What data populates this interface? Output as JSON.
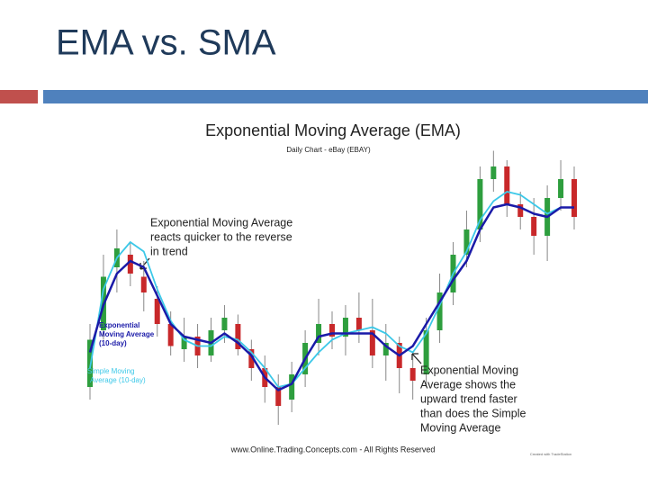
{
  "slide_title": "EMA vs. SMA",
  "chart_data": {
    "type": "candlestick",
    "title": "Exponential Moving Average (EMA)",
    "subtitle": "Daily Chart - eBay (EBAY)",
    "ylim": [
      0,
      100
    ],
    "candles": {
      "open": [
        20,
        38,
        58,
        62,
        55,
        48,
        40,
        32,
        36,
        30,
        38,
        40,
        32,
        26,
        20,
        16,
        24,
        34,
        40,
        36,
        42,
        38,
        30,
        34,
        26,
        24,
        38,
        50,
        62,
        70,
        86,
        90,
        78,
        74,
        68,
        80,
        86
      ],
      "close": [
        35,
        55,
        64,
        56,
        50,
        40,
        33,
        36,
        30,
        38,
        42,
        32,
        26,
        20,
        14,
        24,
        34,
        40,
        36,
        42,
        38,
        30,
        34,
        26,
        22,
        38,
        50,
        62,
        70,
        86,
        90,
        78,
        74,
        68,
        80,
        86,
        74
      ],
      "high": [
        40,
        62,
        70,
        66,
        60,
        52,
        44,
        42,
        40,
        42,
        46,
        43,
        35,
        30,
        24,
        28,
        38,
        48,
        44,
        46,
        50,
        48,
        40,
        36,
        30,
        42,
        56,
        66,
        76,
        90,
        95,
        92,
        82,
        80,
        84,
        92,
        90
      ],
      "low": [
        16,
        35,
        50,
        52,
        44,
        36,
        30,
        28,
        26,
        28,
        34,
        30,
        22,
        15,
        8,
        12,
        20,
        30,
        32,
        30,
        34,
        26,
        22,
        18,
        16,
        20,
        34,
        46,
        58,
        66,
        82,
        74,
        70,
        62,
        60,
        76,
        70
      ],
      "up_color": "#2e9e3e",
      "down_color": "#c8282a"
    },
    "series": [
      {
        "name": "Exponential Moving Average (10-day)",
        "color": "#1a1aa8",
        "values": [
          31,
          46,
          56,
          60,
          58,
          49,
          40,
          36,
          35,
          34,
          37,
          34,
          30,
          23,
          19,
          21,
          29,
          36,
          37,
          37,
          37,
          37,
          33,
          30,
          33,
          40,
          47,
          54,
          60,
          70,
          77,
          78,
          77,
          75,
          74,
          77,
          77
        ]
      },
      {
        "name": "Simple Moving Average (10-day)",
        "color": "#3cc8e8",
        "values": [
          26,
          51,
          61,
          66,
          63,
          51,
          41,
          35,
          33,
          33,
          36,
          35,
          31,
          26,
          20,
          21,
          26,
          31,
          35,
          37,
          38,
          39,
          37,
          33,
          31,
          37,
          46,
          56,
          63,
          73,
          79,
          82,
          81,
          78,
          75,
          77,
          77
        ]
      }
    ],
    "annotations": [
      [
        "Exponential Moving Average",
        "reacts quicker to the reverse",
        "in trend"
      ],
      [
        "Exponential Moving",
        "Average shows the",
        "upward trend faster",
        "than does the Simple",
        "Moving Average"
      ]
    ],
    "footer": "www.Online.Trading.Concepts.com - All Rights Reserved",
    "credit": "Created with TradeStation"
  }
}
